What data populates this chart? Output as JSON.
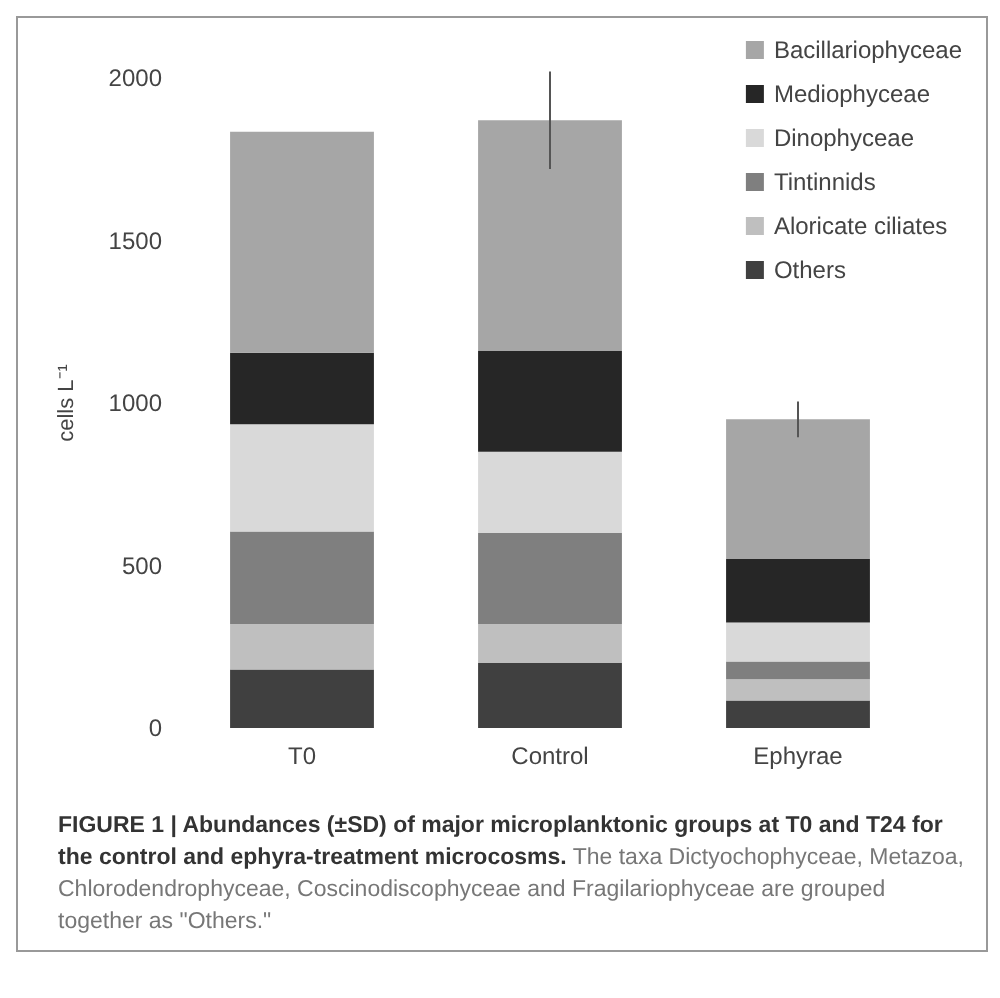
{
  "chart_data": {
    "type": "bar",
    "stacked": true,
    "title": "FIGURE 1 | Abundances (±SD) of major microplanktonic groups at T0 and T24 for the control and ephyra-treatment microcosms.",
    "annotations": [
      "The taxa Dictyochophyceae, Metazoa, Chlorodendrophyceae, Coscinodiscophyceae and Fragilariophyceae are grouped together as \"Others.\""
    ],
    "ylabel": "cells L⁻¹",
    "categories": [
      "T0",
      "Control",
      "Ephyrae"
    ],
    "series": [
      {
        "name": "Others",
        "color": "#404040",
        "values": [
          180,
          200,
          85
        ]
      },
      {
        "name": "Aloricate ciliates",
        "color": "#bfbfbf",
        "values": [
          140,
          120,
          65
        ]
      },
      {
        "name": "Tintinnids",
        "color": "#7f7f7f",
        "values": [
          285,
          280,
          55
        ]
      },
      {
        "name": "Dinophyceae",
        "color": "#d9d9d9",
        "values": [
          330,
          250,
          120
        ]
      },
      {
        "name": "Mediophyceae",
        "color": "#262626",
        "values": [
          220,
          310,
          195
        ]
      },
      {
        "name": "Bacillariophyceae",
        "color": "#a6a6a6",
        "values": [
          680,
          710,
          430
        ],
        "errors": [
          null,
          150,
          55
        ]
      }
    ],
    "ylim": [
      0,
      2000
    ],
    "yticks": [
      0,
      500,
      1000,
      1500,
      2000
    ],
    "grid": false,
    "legend": "top right"
  }
}
